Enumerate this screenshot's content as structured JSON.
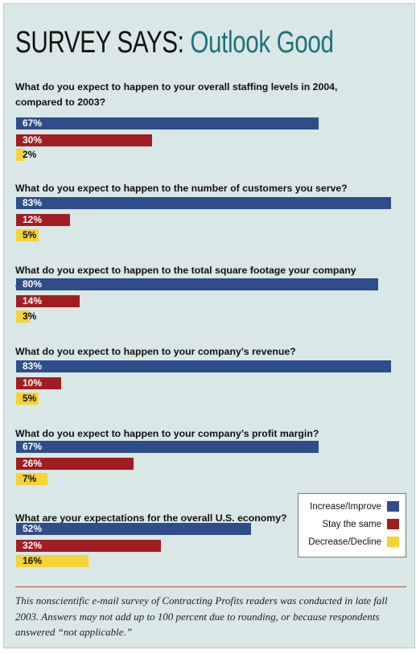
{
  "title": {
    "part1": "SURVEY SAYS:",
    "part2": "Outlook Good"
  },
  "legend": [
    {
      "label": "Increase/Improve",
      "color": "#2f4d8a"
    },
    {
      "label": "Stay the same",
      "color": "#a01e22"
    },
    {
      "label": "Decrease/Decline",
      "color": "#f5d335"
    }
  ],
  "footnote": "This nonscientific e-mail survey of Contracting Profits readers was conducted in late fall 2003. Answers may not add up to 100 percent due to rounding, or because respondents answered “not applicable.”",
  "chart_data": {
    "type": "bar",
    "orientation": "horizontal",
    "unit": "%",
    "xlim": [
      0,
      84
    ],
    "categories": [
      "Increase/Improve",
      "Stay the same",
      "Decrease/Decline"
    ],
    "groups": [
      {
        "question": "What do you expect to happen to your overall staffing levels in 2004, compared to 2003?",
        "values": [
          67,
          30,
          2
        ],
        "labels": [
          "67%",
          "30%",
          "2%"
        ]
      },
      {
        "question": "What do you expect to happen to the number of customers you serve?",
        "values": [
          83,
          12,
          5
        ],
        "labels": [
          "83%",
          "12%",
          "5%"
        ]
      },
      {
        "question": "What do you expect to happen to the total square footage your company cleans?",
        "values": [
          80,
          14,
          3
        ],
        "labels": [
          "80%",
          "14%",
          "3%"
        ]
      },
      {
        "question": "What do you expect to happen to your company’s revenue?",
        "values": [
          83,
          10,
          5
        ],
        "labels": [
          "83%",
          "10%",
          "5%"
        ]
      },
      {
        "question": "What do you expect to happen to your company’s profit margin?",
        "values": [
          67,
          26,
          7
        ],
        "labels": [
          "67%",
          "26%",
          "7%"
        ]
      },
      {
        "question": "What are your expectations for the overall U.S. economy?",
        "values": [
          52,
          32,
          16
        ],
        "labels": [
          "52%",
          "32%",
          "16%"
        ]
      }
    ]
  }
}
